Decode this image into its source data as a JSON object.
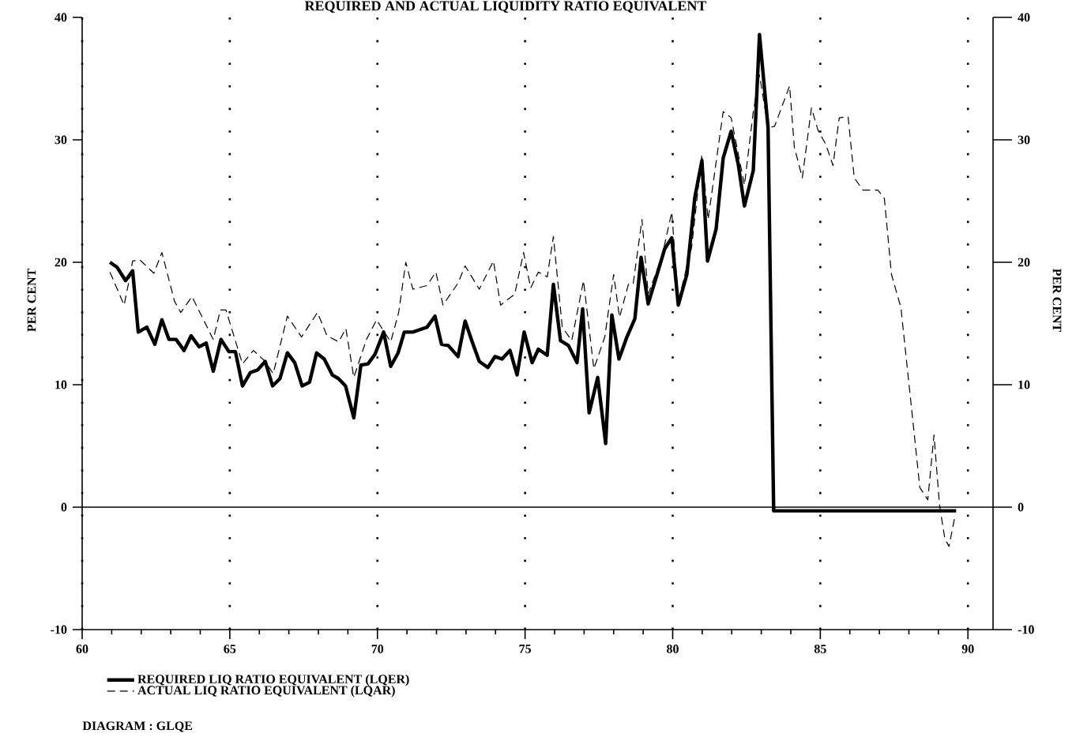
{
  "chart_data": {
    "type": "line",
    "title": "REQUIRED AND ACTUAL LIQUIDITY RATIO EQUIVALENT",
    "ylabel": "PER CENT",
    "y2label": "PER CENT",
    "xlim": [
      60,
      90.85
    ],
    "xticks": [
      60,
      65,
      70,
      75,
      80,
      85,
      90
    ],
    "ylim": [
      -10,
      40
    ],
    "yticks": [
      -10,
      0,
      10,
      20,
      30,
      40
    ],
    "y2lim": [
      -10,
      40
    ],
    "y2ticks": [
      -10,
      0,
      10,
      20,
      30,
      40
    ],
    "grid": "x",
    "legend": "bottom",
    "ref_lines": [
      {
        "axis": "y",
        "value": 0
      }
    ],
    "annotations": [
      "DIAGRAM : GLQE"
    ],
    "series": [
      {
        "name": "REQUIRED LIQ RATIO EQUIVALENT (LQER)",
        "color": "#000000",
        "line_style": "solid",
        "x": [
          60.94,
          61.18,
          61.47,
          61.71,
          61.9,
          62.19,
          62.46,
          62.7,
          62.94,
          63.18,
          63.45,
          63.69,
          63.96,
          64.2,
          64.44,
          64.7,
          64.97,
          65.19,
          65.43,
          65.7,
          65.94,
          66.2,
          66.45,
          66.7,
          66.95,
          67.2,
          67.45,
          67.7,
          67.94,
          68.2,
          68.47,
          68.68,
          68.92,
          69.2,
          69.44,
          69.68,
          69.92,
          70.21,
          70.45,
          70.7,
          70.91,
          71.2,
          71.44,
          71.68,
          71.95,
          72.17,
          72.4,
          72.73,
          72.97,
          73.21,
          73.45,
          73.74,
          73.98,
          74.22,
          74.49,
          74.73,
          74.97,
          75.24,
          75.45,
          75.75,
          75.96,
          76.2,
          76.47,
          76.76,
          76.95,
          77.17,
          77.46,
          77.73,
          77.94,
          78.18,
          78.45,
          78.72,
          78.93,
          79.17,
          79.47,
          79.73,
          79.97,
          80.19,
          80.48,
          80.75,
          80.99,
          81.18,
          81.47,
          81.71,
          81.98,
          82.22,
          82.43,
          82.73,
          82.94,
          83.23,
          83.42,
          89.6
        ],
        "values": [
          20.0,
          19.6,
          18.5,
          19.3,
          14.3,
          14.7,
          13.3,
          15.3,
          13.7,
          13.7,
          12.8,
          14.0,
          13.1,
          13.4,
          11.1,
          13.7,
          12.7,
          12.7,
          9.9,
          11.0,
          11.2,
          11.9,
          9.9,
          10.5,
          12.6,
          11.8,
          9.9,
          10.2,
          12.6,
          12.1,
          10.8,
          10.5,
          9.9,
          7.3,
          11.6,
          11.7,
          12.5,
          14.3,
          11.5,
          12.6,
          14.3,
          14.3,
          14.5,
          14.7,
          15.6,
          13.3,
          13.2,
          12.3,
          15.2,
          13.5,
          11.9,
          11.4,
          12.3,
          12.1,
          12.8,
          10.8,
          14.3,
          11.8,
          12.9,
          12.4,
          18.2,
          13.6,
          13.2,
          11.8,
          16.2,
          7.7,
          10.6,
          5.2,
          15.7,
          12.1,
          13.9,
          15.4,
          20.4,
          16.6,
          19.0,
          21.1,
          22.0,
          16.5,
          19.0,
          25.3,
          28.3,
          20.1,
          22.7,
          28.5,
          30.7,
          28.0,
          24.6,
          27.5,
          38.6,
          31.0,
          -0.3,
          -0.3
        ]
      },
      {
        "name": "ACTUAL LIQ RATIO EQUIVALENT (LQAR)",
        "color": "#000000",
        "line_style": "dashed",
        "x": [
          60.94,
          61.42,
          61.58,
          61.71,
          61.95,
          62.43,
          62.7,
          63.13,
          63.34,
          63.72,
          64.44,
          64.68,
          64.87,
          65.43,
          65.8,
          66.2,
          66.47,
          66.95,
          67.43,
          67.97,
          68.29,
          68.69,
          68.93,
          69.2,
          69.63,
          69.97,
          70.45,
          70.72,
          70.96,
          71.2,
          71.68,
          71.98,
          72.22,
          72.73,
          72.97,
          73.45,
          73.93,
          74.17,
          74.65,
          74.95,
          75.19,
          75.45,
          75.75,
          75.96,
          76.26,
          76.58,
          76.98,
          77.33,
          77.7,
          78.0,
          78.2,
          78.5,
          78.66,
          78.96,
          79.17,
          79.63,
          79.97,
          80.19,
          80.64,
          80.99,
          81.2,
          81.71,
          81.98,
          82.43,
          82.73,
          82.94,
          83.23,
          83.45,
          83.96,
          84.12,
          84.39,
          84.7,
          84.92,
          85.19,
          85.43,
          85.64,
          85.94,
          86.15,
          86.44,
          86.95,
          87.17,
          87.41,
          87.73,
          88.18,
          88.37,
          88.64,
          88.85,
          89.04,
          89.22,
          89.36,
          89.57
        ],
        "values": [
          19.2,
          16.5,
          18.4,
          20.1,
          20.2,
          19.1,
          20.8,
          16.8,
          15.9,
          17.2,
          13.7,
          16.1,
          16.1,
          11.7,
          12.8,
          11.9,
          10.9,
          15.6,
          13.9,
          15.9,
          14.0,
          13.5,
          14.6,
          10.6,
          13.7,
          15.3,
          13.5,
          15.9,
          20.0,
          17.8,
          18.1,
          19.2,
          16.5,
          18.3,
          19.7,
          17.8,
          20.1,
          16.5,
          17.4,
          20.8,
          17.9,
          19.2,
          18.8,
          22.1,
          14.7,
          13.6,
          18.5,
          11.3,
          13.9,
          19.0,
          15.5,
          18.2,
          18.2,
          23.5,
          17.4,
          20.4,
          24.1,
          16.8,
          21.2,
          28.8,
          23.5,
          32.3,
          31.8,
          26.3,
          32.3,
          35.3,
          31.0,
          31.1,
          34.4,
          29.4,
          26.9,
          32.6,
          30.8,
          29.6,
          27.9,
          31.8,
          31.9,
          26.9,
          25.9,
          25.9,
          25.2,
          19.0,
          16.3,
          6.0,
          1.6,
          0.6,
          5.9,
          0.1,
          -2.6,
          -3.2,
          -0.6
        ]
      }
    ]
  }
}
